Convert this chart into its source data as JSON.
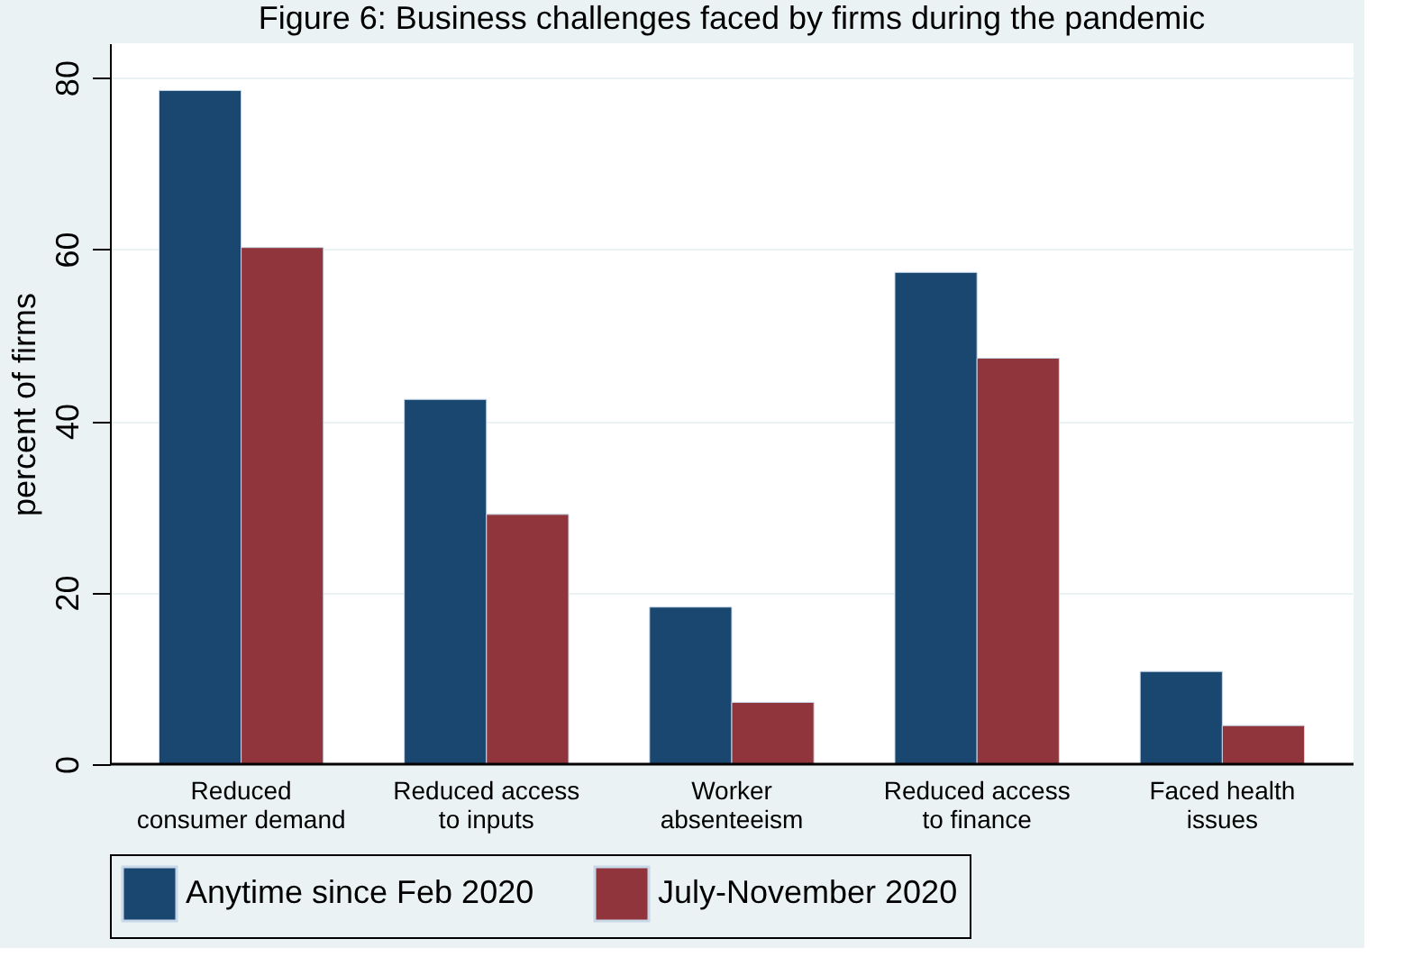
{
  "chart_data": {
    "type": "bar",
    "title": "Figure 6: Business challenges faced by firms during the pandemic",
    "categories": [
      "Reduced\nconsumer demand",
      "Reduced access\nto inputs",
      "Worker\nabsenteeism",
      "Reduced access\nto finance",
      "Faced health\nissues"
    ],
    "series": [
      {
        "name": "Anytime since Feb 2020",
        "color": "#1a476f",
        "values": [
          78.5,
          42.5,
          18.3,
          57.3,
          10.8
        ]
      },
      {
        "name": "July-November 2020",
        "color": "#90353b",
        "values": [
          60.2,
          29.1,
          7.2,
          47.3,
          4.5
        ]
      }
    ],
    "ylabel": "percent of firms",
    "ylim": [
      0,
      84
    ],
    "yticks": [
      0,
      20,
      40,
      60,
      80
    ],
    "grid": "y",
    "legend": "bottom"
  }
}
